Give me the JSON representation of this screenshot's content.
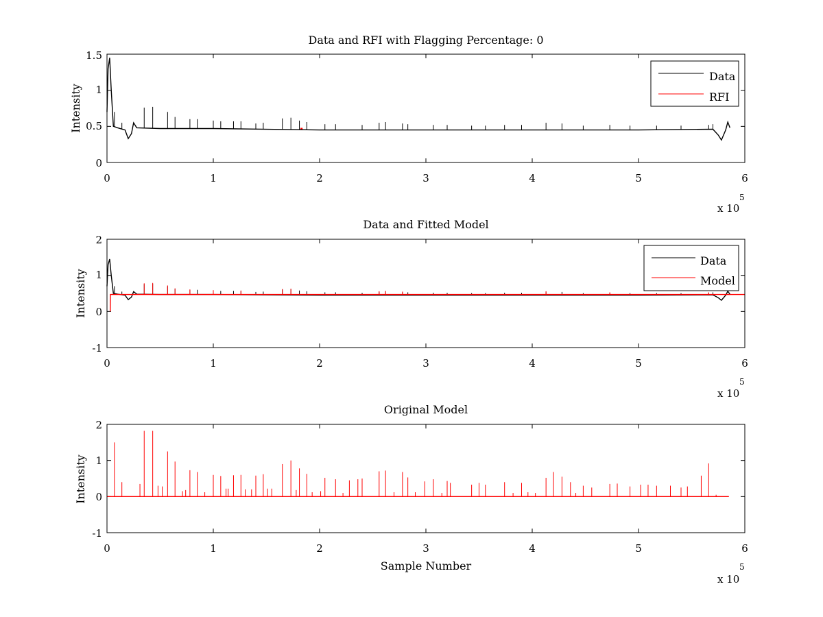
{
  "chart_data": [
    {
      "type": "line",
      "title": "Data and RFI with Flagging Percentage: 0",
      "xlabel": "",
      "ylabel": "Intensity",
      "xlim": [
        0,
        600000
      ],
      "ylim": [
        0,
        1.5
      ],
      "xtick_labels": [
        "0",
        "1",
        "2",
        "3",
        "4",
        "5",
        "6"
      ],
      "ytick_labels": [
        "0",
        "0.5",
        "1",
        "1.5"
      ],
      "exponent_label": "x 10",
      "exponent_power": "5",
      "legend": {
        "position": "top-right",
        "entries": [
          {
            "name": "Data",
            "color": "#000000"
          },
          {
            "name": "RFI",
            "color": "#ff0000"
          }
        ]
      },
      "series": [
        {
          "name": "Data",
          "color": "#000000",
          "baseline": [
            [
              0,
              0.7
            ],
            [
              1000,
              1.3
            ],
            [
              2500,
              1.45
            ],
            [
              4000,
              1.0
            ],
            [
              6000,
              0.5
            ],
            [
              10000,
              0.48
            ],
            [
              17000,
              0.45
            ],
            [
              20000,
              0.33
            ],
            [
              23000,
              0.4
            ],
            [
              25000,
              0.55
            ],
            [
              28000,
              0.48
            ],
            [
              50000,
              0.47
            ],
            [
              100000,
              0.47
            ],
            [
              200000,
              0.45
            ],
            [
              300000,
              0.45
            ],
            [
              400000,
              0.45
            ],
            [
              500000,
              0.45
            ],
            [
              570000,
              0.46
            ],
            [
              575000,
              0.38
            ],
            [
              578000,
              0.31
            ],
            [
              582000,
              0.45
            ],
            [
              584000,
              0.56
            ],
            [
              586000,
              0.48
            ]
          ],
          "spikes": [
            [
              7000,
              0.7
            ],
            [
              14000,
              0.55
            ],
            [
              35000,
              0.76
            ],
            [
              43000,
              0.77
            ],
            [
              57000,
              0.7
            ],
            [
              64000,
              0.63
            ],
            [
              78000,
              0.6
            ],
            [
              85000,
              0.6
            ],
            [
              100000,
              0.58
            ],
            [
              107000,
              0.57
            ],
            [
              119000,
              0.57
            ],
            [
              126000,
              0.57
            ],
            [
              140000,
              0.54
            ],
            [
              147000,
              0.55
            ],
            [
              165000,
              0.61
            ],
            [
              173000,
              0.62
            ],
            [
              181000,
              0.58
            ],
            [
              188000,
              0.56
            ],
            [
              205000,
              0.53
            ],
            [
              215000,
              0.53
            ],
            [
              240000,
              0.52
            ],
            [
              256000,
              0.55
            ],
            [
              262000,
              0.56
            ],
            [
              278000,
              0.54
            ],
            [
              283000,
              0.53
            ],
            [
              307000,
              0.52
            ],
            [
              320000,
              0.52
            ],
            [
              343000,
              0.51
            ],
            [
              356000,
              0.51
            ],
            [
              374000,
              0.52
            ],
            [
              390000,
              0.52
            ],
            [
              413000,
              0.55
            ],
            [
              428000,
              0.54
            ],
            [
              448000,
              0.51
            ],
            [
              473000,
              0.52
            ],
            [
              492000,
              0.51
            ],
            [
              517000,
              0.51
            ],
            [
              540000,
              0.51
            ],
            [
              566000,
              0.52
            ],
            [
              570000,
              0.53
            ]
          ]
        },
        {
          "name": "RFI",
          "color": "#ff0000",
          "points": [
            [
              182000,
              0.47
            ],
            [
              184000,
              0.47
            ]
          ]
        }
      ]
    },
    {
      "type": "line",
      "title": "Data and Fitted Model",
      "xlabel": "",
      "ylabel": "Intensity",
      "xlim": [
        0,
        600000
      ],
      "ylim": [
        -1,
        2
      ],
      "xtick_labels": [
        "0",
        "1",
        "2",
        "3",
        "4",
        "5",
        "6"
      ],
      "ytick_labels": [
        "-1",
        "0",
        "1",
        "2"
      ],
      "exponent_label": "x 10",
      "exponent_power": "5",
      "legend": {
        "position": "top-right",
        "entries": [
          {
            "name": "Data",
            "color": "#000000"
          },
          {
            "name": "Model",
            "color": "#ff0000"
          }
        ]
      },
      "series": [
        {
          "name": "Data",
          "color": "#000000",
          "baseline": [
            [
              0,
              0.7
            ],
            [
              1000,
              1.3
            ],
            [
              2500,
              1.45
            ],
            [
              4000,
              1.0
            ],
            [
              6000,
              0.5
            ],
            [
              10000,
              0.48
            ],
            [
              17000,
              0.45
            ],
            [
              20000,
              0.33
            ],
            [
              23000,
              0.4
            ],
            [
              25000,
              0.55
            ],
            [
              28000,
              0.48
            ],
            [
              50000,
              0.47
            ],
            [
              100000,
              0.47
            ],
            [
              200000,
              0.45
            ],
            [
              300000,
              0.45
            ],
            [
              400000,
              0.45
            ],
            [
              500000,
              0.45
            ],
            [
              570000,
              0.46
            ],
            [
              575000,
              0.38
            ],
            [
              578000,
              0.31
            ],
            [
              582000,
              0.45
            ],
            [
              584000,
              0.56
            ],
            [
              586000,
              0.48
            ]
          ],
          "spikes": [
            [
              7000,
              0.7
            ],
            [
              14000,
              0.55
            ],
            [
              35000,
              0.76
            ],
            [
              43000,
              0.77
            ],
            [
              57000,
              0.7
            ],
            [
              64000,
              0.63
            ],
            [
              78000,
              0.6
            ],
            [
              85000,
              0.6
            ],
            [
              100000,
              0.58
            ],
            [
              107000,
              0.57
            ],
            [
              119000,
              0.57
            ],
            [
              126000,
              0.57
            ],
            [
              140000,
              0.54
            ],
            [
              147000,
              0.55
            ],
            [
              165000,
              0.61
            ],
            [
              173000,
              0.62
            ],
            [
              181000,
              0.58
            ],
            [
              188000,
              0.56
            ],
            [
              205000,
              0.53
            ],
            [
              215000,
              0.53
            ],
            [
              240000,
              0.52
            ],
            [
              256000,
              0.55
            ],
            [
              262000,
              0.56
            ],
            [
              278000,
              0.54
            ],
            [
              283000,
              0.53
            ],
            [
              307000,
              0.52
            ],
            [
              320000,
              0.52
            ],
            [
              343000,
              0.51
            ],
            [
              356000,
              0.51
            ],
            [
              374000,
              0.52
            ],
            [
              390000,
              0.52
            ],
            [
              413000,
              0.55
            ],
            [
              428000,
              0.54
            ],
            [
              448000,
              0.51
            ],
            [
              473000,
              0.52
            ],
            [
              492000,
              0.51
            ],
            [
              517000,
              0.51
            ],
            [
              540000,
              0.51
            ],
            [
              566000,
              0.52
            ],
            [
              570000,
              0.53
            ]
          ]
        },
        {
          "name": "Model",
          "color": "#ff0000",
          "baseline": [
            [
              3000,
              0.0
            ],
            [
              3200,
              0.47
            ],
            [
              600000,
              0.47
            ]
          ],
          "spikes": [
            [
              35000,
              0.78
            ],
            [
              43000,
              0.79
            ],
            [
              57000,
              0.72
            ],
            [
              64000,
              0.64
            ],
            [
              78000,
              0.61
            ],
            [
              100000,
              0.59
            ],
            [
              126000,
              0.58
            ],
            [
              165000,
              0.62
            ],
            [
              173000,
              0.63
            ],
            [
              256000,
              0.56
            ],
            [
              262000,
              0.57
            ],
            [
              278000,
              0.55
            ],
            [
              413000,
              0.56
            ],
            [
              473000,
              0.53
            ],
            [
              566000,
              0.53
            ]
          ]
        }
      ]
    },
    {
      "type": "line",
      "title": "Original Model",
      "xlabel": "Sample Number",
      "ylabel": "Intensity",
      "xlim": [
        0,
        600000
      ],
      "ylim": [
        -1,
        2
      ],
      "xtick_labels": [
        "0",
        "1",
        "2",
        "3",
        "4",
        "5",
        "6"
      ],
      "ytick_labels": [
        "-1",
        "0",
        "1",
        "2"
      ],
      "exponent_label": "x 10",
      "exponent_power": "5",
      "series": [
        {
          "name": "Model",
          "color": "#ff0000",
          "baseline": [
            [
              0,
              0.0
            ],
            [
              585000,
              0.0
            ]
          ],
          "spikes": [
            [
              7000,
              1.5
            ],
            [
              14000,
              0.4
            ],
            [
              31000,
              0.35
            ],
            [
              35000,
              1.82
            ],
            [
              43000,
              1.82
            ],
            [
              48000,
              0.3
            ],
            [
              52000,
              0.28
            ],
            [
              57000,
              1.25
            ],
            [
              64000,
              0.97
            ],
            [
              71000,
              0.15
            ],
            [
              74000,
              0.18
            ],
            [
              78000,
              0.73
            ],
            [
              85000,
              0.68
            ],
            [
              92000,
              0.12
            ],
            [
              100000,
              0.6
            ],
            [
              107000,
              0.57
            ],
            [
              112000,
              0.22
            ],
            [
              114000,
              0.22
            ],
            [
              119000,
              0.59
            ],
            [
              126000,
              0.6
            ],
            [
              130000,
              0.2
            ],
            [
              136000,
              0.2
            ],
            [
              140000,
              0.58
            ],
            [
              147000,
              0.62
            ],
            [
              151000,
              0.22
            ],
            [
              155000,
              0.22
            ],
            [
              165000,
              0.9
            ],
            [
              173000,
              1.0
            ],
            [
              178000,
              0.18
            ],
            [
              181000,
              0.78
            ],
            [
              188000,
              0.63
            ],
            [
              193000,
              0.12
            ],
            [
              201000,
              0.15
            ],
            [
              205000,
              0.52
            ],
            [
              215000,
              0.48
            ],
            [
              222000,
              0.1
            ],
            [
              228000,
              0.45
            ],
            [
              236000,
              0.48
            ],
            [
              240000,
              0.5
            ],
            [
              256000,
              0.7
            ],
            [
              262000,
              0.72
            ],
            [
              270000,
              0.12
            ],
            [
              278000,
              0.68
            ],
            [
              283000,
              0.53
            ],
            [
              290000,
              0.12
            ],
            [
              299000,
              0.42
            ],
            [
              307000,
              0.48
            ],
            [
              315000,
              0.1
            ],
            [
              320000,
              0.43
            ],
            [
              323000,
              0.38
            ],
            [
              343000,
              0.33
            ],
            [
              350000,
              0.38
            ],
            [
              356000,
              0.33
            ],
            [
              374000,
              0.4
            ],
            [
              382000,
              0.1
            ],
            [
              390000,
              0.38
            ],
            [
              396000,
              0.12
            ],
            [
              403000,
              0.1
            ],
            [
              413000,
              0.52
            ],
            [
              420000,
              0.68
            ],
            [
              428000,
              0.55
            ],
            [
              436000,
              0.4
            ],
            [
              441000,
              0.1
            ],
            [
              448000,
              0.3
            ],
            [
              456000,
              0.25
            ],
            [
              473000,
              0.35
            ],
            [
              480000,
              0.36
            ],
            [
              492000,
              0.28
            ],
            [
              502000,
              0.33
            ],
            [
              509000,
              0.33
            ],
            [
              517000,
              0.3
            ],
            [
              530000,
              0.3
            ],
            [
              540000,
              0.25
            ],
            [
              546000,
              0.28
            ],
            [
              559000,
              0.58
            ],
            [
              566000,
              0.92
            ],
            [
              573000,
              0.05
            ]
          ]
        }
      ]
    }
  ]
}
